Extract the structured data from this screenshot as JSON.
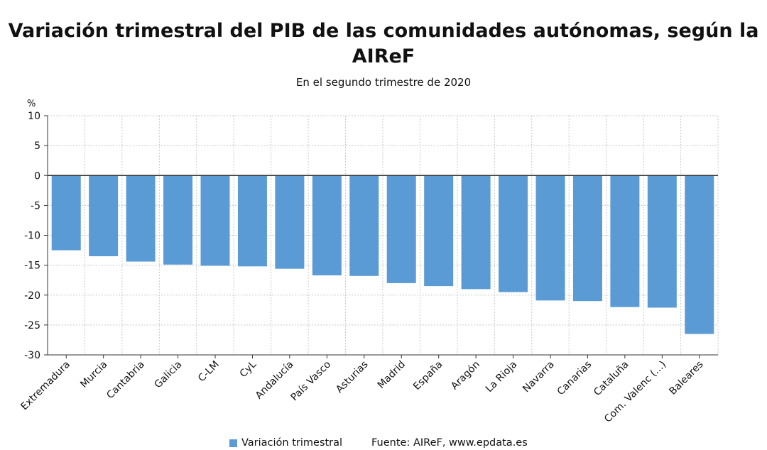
{
  "chart_data": {
    "type": "bar",
    "title": "Variación trimestral del PIB de las comunidades autónomas, según la AIReF",
    "subtitle": "En el segundo trimestre de 2020",
    "ylabel": "%",
    "xlabel": "",
    "ylim": [
      -30,
      10
    ],
    "yticks": [
      10,
      5,
      0,
      -5,
      -10,
      -15,
      -20,
      -25,
      -30
    ],
    "grid": true,
    "bar_color": "#5b9bd5",
    "categories": [
      "Extremadura",
      "Murcia",
      "Cantabria",
      "Galicia",
      "C-LM",
      "CyL",
      "Andalucía",
      "País Vasco",
      "Asturias",
      "Madrid",
      "España",
      "Aragón",
      "La Rioja",
      "Navarra",
      "Canarias",
      "Cataluña",
      "Com. Valenc (...)",
      "Baleares"
    ],
    "series": [
      {
        "name": "Variación trimestral",
        "values": [
          -12.5,
          -13.5,
          -14.4,
          -14.9,
          -15.1,
          -15.2,
          -15.6,
          -16.7,
          -16.8,
          -18.0,
          -18.5,
          -19.0,
          -19.5,
          -20.9,
          -21.0,
          -22.0,
          -22.1,
          -26.5
        ]
      }
    ],
    "legend": "bottom",
    "source": "Fuente: AIReF, www.epdata.es"
  }
}
